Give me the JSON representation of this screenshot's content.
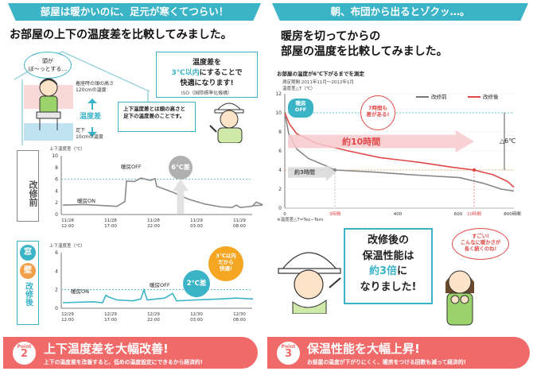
{
  "left": {
    "banner": "部屋は暖かいのに、足元が寒くてつらい！",
    "heading": "お部屋の上下の温度差を比較してみました。",
    "head_bubble": "頭が\nぼ〜っとする…",
    "head_height_label": "着座時の頭の高さ\n120cmの温度",
    "temp_diff_label": "温度差",
    "foot_label": "足下\n10cmの温度",
    "callout_title": "温度差を",
    "callout_highlight": "3℃以内",
    "callout_line2": "にすることで",
    "callout_line3": "快適になります!",
    "callout_source": "ISO（国際標準化機構）",
    "note": "上下温度差とは頭の高さと足下の温度差のことです。",
    "chart1": {
      "ylabel": "上下温度差（℃）",
      "side_label": "改修前",
      "heater_off": "暖房OFF",
      "heater_on": "暖房ON",
      "badge": "6℃差",
      "yticks": [
        "0",
        "2",
        "4",
        "6",
        "8",
        "10"
      ],
      "xticks": [
        [
          "11/28",
          "12:00"
        ],
        [
          "11/28",
          "17:00"
        ],
        [
          "11/28",
          "22:00"
        ],
        [
          "11/29",
          "03:00"
        ],
        [
          "11/29",
          "08:00"
        ]
      ]
    },
    "chart2": {
      "ylabel": "上下温度差（℃）",
      "side_label_top": "窓",
      "side_label_mid": "壁",
      "side_label_bottom": "改修後",
      "heater_on": "暖房ON",
      "heater_off": "暖房OFF",
      "badge": "2℃差",
      "bubble": "3℃以内\nだから\n快適!",
      "yticks": [
        "0",
        "2",
        "4",
        "6"
      ],
      "xticks": [
        [
          "12/29",
          "12:00"
        ],
        [
          "12/29",
          "17:00"
        ],
        [
          "12/29",
          "22:00"
        ],
        [
          "12/30",
          "03:00"
        ],
        [
          "12/30",
          "08:00"
        ]
      ]
    },
    "point_label": "Point",
    "point_num": "2",
    "bottom_title": "上下温度差を大幅改善!",
    "bottom_sub": "上下の温度差を改善すると、低めの温度設定にできるから経済的!"
  },
  "right": {
    "banner": "朝、布団から出るとゾクッ…。",
    "heading_line1": "暖房を切ってからの",
    "heading_line2": "部屋の温度を比較してみました。",
    "chart": {
      "title": "お部屋の温度が6℃下がるまでを測定",
      "period": "測定期間:2011年11月〜2012年1月",
      "unit": "温度差△T（℃）",
      "legend_before": "改修前",
      "legend_after": "改修後",
      "heater_off": "暖房\nOFF",
      "bubble": "7時間も\n差がある!",
      "arrow_label": "約10時間",
      "arrow_short": "約3時間",
      "delta": "△6℃",
      "yticks": [
        "0",
        "2",
        "4",
        "6",
        "8",
        "10",
        "12"
      ],
      "xticks": [
        "0",
        "3時間",
        "400",
        "600",
        "10時間",
        "800時間"
      ],
      "footnote": "※温度差△T=Tex−Tem"
    },
    "center_text_1": "改修後の",
    "center_text_2": "保温性能は",
    "center_text_3": "約3倍",
    "center_text_3b": "に",
    "center_text_4": "なりました!",
    "woman_bubble": "すごい!\nこんなに暖かさが\n長く続くのね!",
    "point_label": "Point",
    "point_num": "3",
    "bottom_title": "保温性能を大幅上昇!",
    "bottom_sub": "お部屋の温度が下がりにくく、暖房をつける回数も減って経済的!"
  }
}
